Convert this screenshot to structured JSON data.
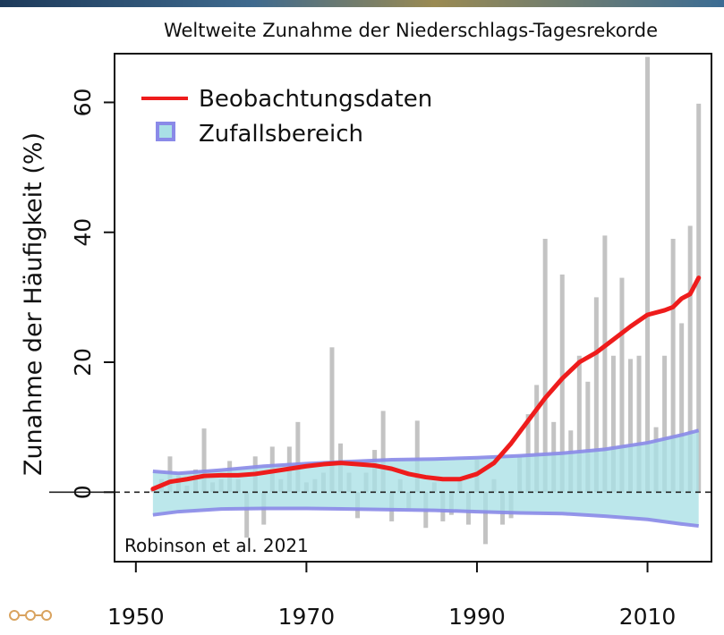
{
  "chart_data": {
    "type": "bar",
    "title": "Weltweite Zunahme der Niederschlags-Tagesrekorde",
    "xlabel": "",
    "ylabel": "Zunahme der Häufigkeit (%)",
    "xlim": [
      1947.5,
      2017.5
    ],
    "ylim": [
      -10.7,
      67.5
    ],
    "x_ticks": [
      1950,
      1970,
      1990,
      2010
    ],
    "y_ticks": [
      0,
      20,
      40,
      60
    ],
    "grid": false,
    "legend_position": "top-left",
    "colors": {
      "bars": "#bdbdbd",
      "line": "#ee1c1c",
      "band_fill": "#a9e0e6",
      "band_edge": "#8a8ae8",
      "zero_line": "#222222"
    },
    "annotation": "Robinson et al. 2021",
    "series": [
      {
        "name": "Beobachtungsdaten",
        "kind": "line",
        "x": [
          1952,
          1954,
          1956,
          1958,
          1960,
          1962,
          1964,
          1966,
          1968,
          1970,
          1972,
          1974,
          1976,
          1978,
          1980,
          1982,
          1984,
          1986,
          1988,
          1990,
          1992,
          1994,
          1996,
          1998,
          2000,
          2002,
          2004,
          2006,
          2008,
          2010,
          2012,
          2013,
          2014,
          2015,
          2016
        ],
        "y": [
          0.5,
          1.6,
          2.0,
          2.5,
          2.6,
          2.6,
          2.8,
          3.2,
          3.6,
          4.0,
          4.3,
          4.5,
          4.3,
          4.1,
          3.6,
          2.8,
          2.3,
          2.0,
          2.0,
          2.8,
          4.5,
          7.5,
          11.0,
          14.5,
          17.5,
          20.0,
          21.5,
          23.5,
          25.5,
          27.3,
          28.0,
          28.5,
          29.8,
          30.5,
          33.0
        ]
      },
      {
        "name": "Zufallsbereich",
        "kind": "band",
        "x": [
          1952,
          1955,
          1960,
          1965,
          1970,
          1975,
          1980,
          1985,
          1990,
          1995,
          2000,
          2005,
          2010,
          2014,
          2016
        ],
        "upper": [
          3.2,
          2.9,
          3.4,
          4.0,
          4.4,
          4.7,
          5.0,
          5.1,
          5.3,
          5.6,
          6.0,
          6.6,
          7.6,
          8.8,
          9.5
        ],
        "lower": [
          -3.5,
          -3.0,
          -2.6,
          -2.5,
          -2.5,
          -2.6,
          -2.7,
          -2.8,
          -3.0,
          -3.2,
          -3.3,
          -3.7,
          -4.2,
          -4.9,
          -5.2
        ]
      },
      {
        "name": "",
        "kind": "bars",
        "x": [
          1952,
          1953,
          1954,
          1955,
          1956,
          1957,
          1958,
          1959,
          1960,
          1961,
          1962,
          1963,
          1964,
          1965,
          1966,
          1967,
          1968,
          1969,
          1970,
          1971,
          1972,
          1973,
          1974,
          1975,
          1976,
          1977,
          1978,
          1979,
          1980,
          1981,
          1982,
          1983,
          1984,
          1985,
          1986,
          1987,
          1988,
          1989,
          1990,
          1991,
          1992,
          1993,
          1994,
          1995,
          1996,
          1997,
          1998,
          1999,
          2000,
          2001,
          2002,
          2003,
          2004,
          2005,
          2006,
          2007,
          2008,
          2009,
          2010,
          2011,
          2012,
          2013,
          2014,
          2015,
          2016
        ],
        "y": [
          0.5,
          2.0,
          5.5,
          2.5,
          1.0,
          3.5,
          9.8,
          1.5,
          2.0,
          4.8,
          2.0,
          -7.0,
          5.5,
          -5.0,
          7.0,
          2.0,
          7.0,
          10.8,
          1.5,
          2.0,
          3.0,
          22.3,
          7.5,
          3.0,
          -4.0,
          3.0,
          6.5,
          12.5,
          -4.5,
          2.0,
          -2.5,
          11.0,
          -5.5,
          1.5,
          -4.5,
          -3.5,
          2.0,
          -5.0,
          5.0,
          -8.0,
          2.0,
          -5.0,
          -4.0,
          5.5,
          12.0,
          16.5,
          39.0,
          10.8,
          33.5,
          9.5,
          21.0,
          17.0,
          30.0,
          39.5,
          21.0,
          33.0,
          20.5,
          21.0,
          67.0,
          10.0,
          21.0,
          39.0,
          26.0,
          41.0,
          59.8
        ]
      }
    ]
  }
}
